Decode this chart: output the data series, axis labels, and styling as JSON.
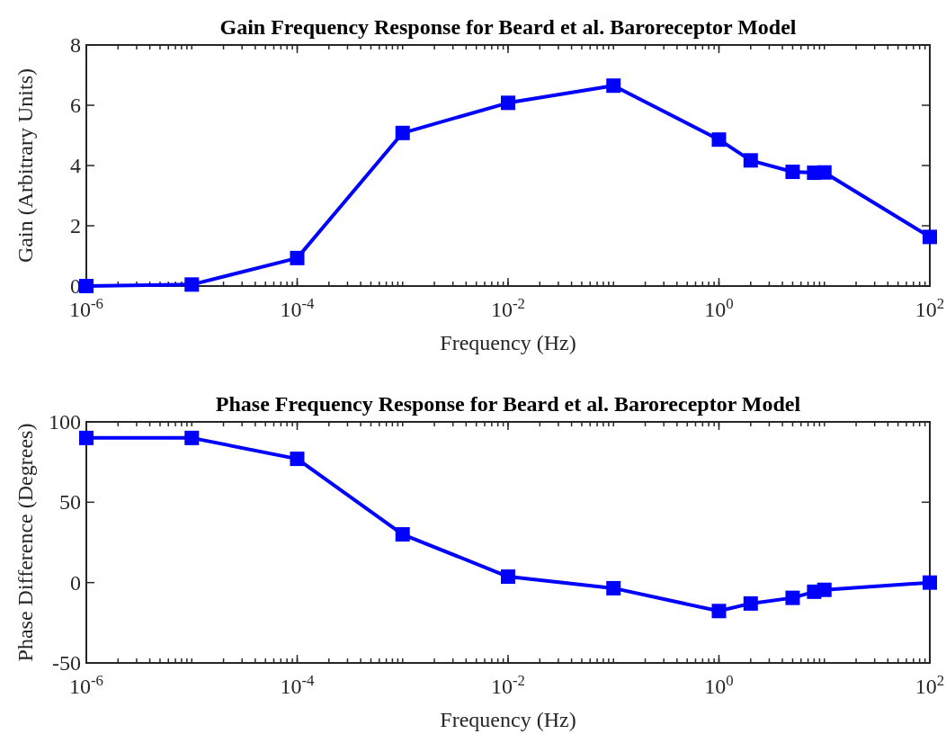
{
  "chart_data": [
    {
      "type": "line",
      "title": "Gain Frequency Response for Beard et al. Baroreceptor Model",
      "xlabel": "Frequency (Hz)",
      "ylabel": "Gain (Arbitrary Units)",
      "log": "x",
      "marker": "square",
      "line_style": "solid",
      "grid": false,
      "x": [
        1e-06,
        1e-05,
        0.0001,
        0.001,
        0.01,
        0.1,
        1,
        2,
        5,
        8,
        10,
        100
      ],
      "series": [
        {
          "color": "#0000ff",
          "values": [
            0,
            0.05,
            0.93,
            5.08,
            6.08,
            6.65,
            4.86,
            4.17,
            3.79,
            3.76,
            3.77,
            1.63
          ]
        }
      ],
      "xlim": [
        1e-06,
        100
      ],
      "xticks": [
        {
          "value": 1e-06,
          "label": "10$^{-6}$"
        },
        {
          "value": 0.0001,
          "label": "10$^{-4}$"
        },
        {
          "value": 0.01,
          "label": "10$^{-2}$"
        },
        {
          "value": 1,
          "label": "10$^{0}$"
        },
        {
          "value": 100,
          "label": "10$^{2}$"
        }
      ],
      "ylim": [
        0,
        8
      ],
      "yticks": [
        0,
        2,
        4,
        6,
        8
      ]
    },
    {
      "type": "line",
      "title": "Phase Frequency Response for Beard et al. Baroreceptor Model",
      "xlabel": "Frequency (Hz)",
      "ylabel": "Phase Difference (Degrees)",
      "log": "x",
      "marker": "square",
      "line_style": "solid",
      "grid": false,
      "x": [
        1e-06,
        1e-05,
        0.0001,
        0.001,
        0.01,
        0.1,
        1,
        2,
        5,
        8,
        10,
        100
      ],
      "series": [
        {
          "color": "#0000ff",
          "values": [
            90,
            90,
            77,
            30,
            3.7,
            -3.5,
            -17.7,
            -13,
            -9.5,
            -5.7,
            -4.5,
            0
          ]
        }
      ],
      "xlim": [
        1e-06,
        100
      ],
      "xticks": [
        {
          "value": 1e-06,
          "label": "10$^{-6}$"
        },
        {
          "value": 0.0001,
          "label": "10$^{-4}$"
        },
        {
          "value": 0.01,
          "label": "10$^{-2}$"
        },
        {
          "value": 1,
          "label": "10$^{0}$"
        },
        {
          "value": 100,
          "label": "10$^{2}$"
        }
      ],
      "ylim": [
        -50,
        100
      ],
      "yticks": [
        -50,
        0,
        50,
        100
      ]
    }
  ]
}
